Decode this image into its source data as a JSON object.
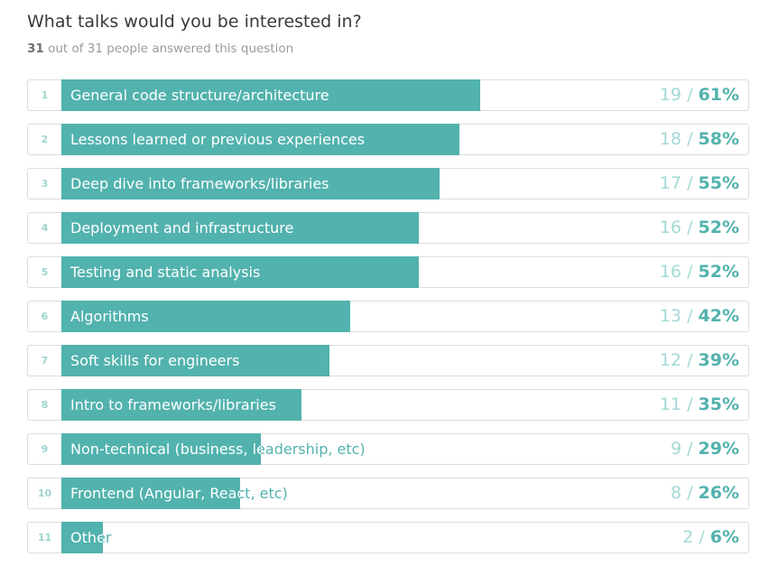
{
  "question": {
    "title": "What talks would you be interested in?",
    "answered_count": "31",
    "answered_suffix": "out of 31 people answered this question"
  },
  "colors": {
    "bar": "#52b2ad",
    "light_text": "#a3d9d5"
  },
  "options": [
    {
      "rank": "1",
      "label": "General code structure/architecture",
      "votes": "19",
      "percent": "61%",
      "share": 0.61
    },
    {
      "rank": "2",
      "label": "Lessons learned or previous experiences",
      "votes": "18",
      "percent": "58%",
      "share": 0.58
    },
    {
      "rank": "3",
      "label": "Deep dive into frameworks/libraries",
      "votes": "17",
      "percent": "55%",
      "share": 0.55
    },
    {
      "rank": "4",
      "label": "Deployment and infrastructure",
      "votes": "16",
      "percent": "52%",
      "share": 0.52
    },
    {
      "rank": "5",
      "label": "Testing and static analysis",
      "votes": "16",
      "percent": "52%",
      "share": 0.52
    },
    {
      "rank": "6",
      "label": "Algorithms",
      "votes": "13",
      "percent": "42%",
      "share": 0.42
    },
    {
      "rank": "7",
      "label": "Soft skills for engineers",
      "votes": "12",
      "percent": "39%",
      "share": 0.39
    },
    {
      "rank": "8",
      "label": "Intro to frameworks/libraries",
      "votes": "11",
      "percent": "35%",
      "share": 0.35
    },
    {
      "rank": "9",
      "label": "Non-technical (business, leadership, etc)",
      "votes": "9",
      "percent": "29%",
      "share": 0.29
    },
    {
      "rank": "10",
      "label": "Frontend (Angular, React, etc)",
      "votes": "8",
      "percent": "26%",
      "share": 0.26
    },
    {
      "rank": "11",
      "label": "Other",
      "votes": "2",
      "percent": "6%",
      "share": 0.06
    }
  ]
}
